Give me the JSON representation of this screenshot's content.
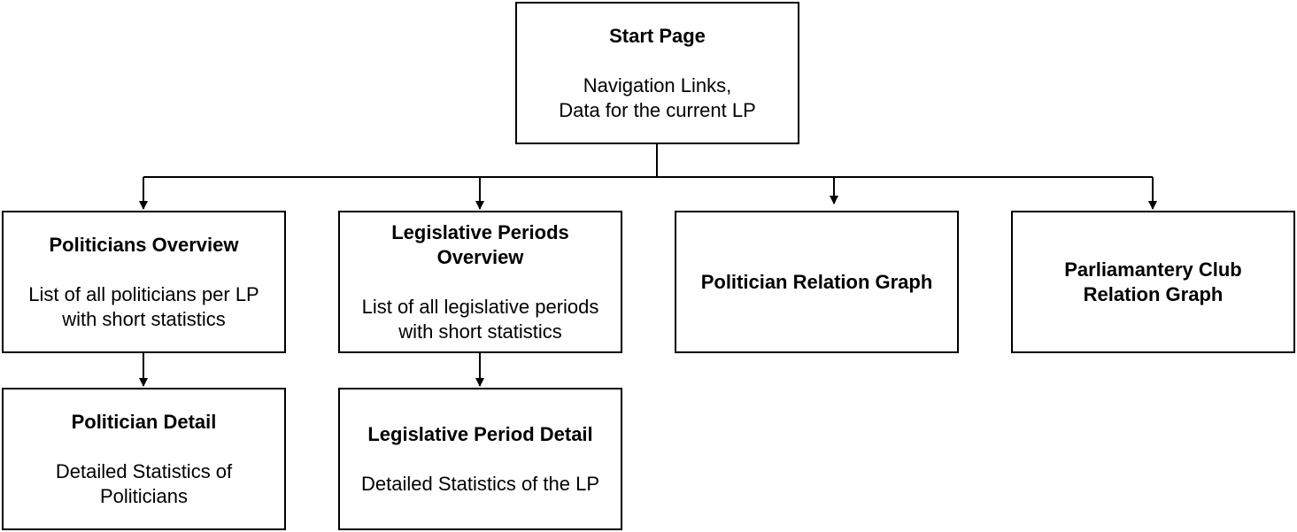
{
  "nodes": {
    "start": {
      "title": "Start Page",
      "description": "Navigation Links,\nData for the current LP"
    },
    "politicians_overview": {
      "title": "Politicians Overview",
      "description": "List of all politicians per LP\nwith short statistics"
    },
    "lp_overview": {
      "title": "Legislative Periods\nOverview",
      "description": "List of all legislative periods\nwith short statistics"
    },
    "relation_graph": {
      "title": "Politician Relation Graph",
      "description": ""
    },
    "club_graph": {
      "title": "Parliamantery Club\nRelation Graph",
      "description": ""
    },
    "politician_detail": {
      "title": "Politician Detail",
      "description": "Detailed Statistics of\nPoliticians"
    },
    "lp_detail": {
      "title": "Legislative Period Detail",
      "description": "Detailed Statistics of the LP"
    }
  },
  "edges": [
    {
      "from": "start",
      "to": "politicians_overview"
    },
    {
      "from": "start",
      "to": "lp_overview"
    },
    {
      "from": "start",
      "to": "relation_graph"
    },
    {
      "from": "start",
      "to": "club_graph"
    },
    {
      "from": "politicians_overview",
      "to": "politician_detail"
    },
    {
      "from": "lp_overview",
      "to": "lp_detail"
    }
  ],
  "colors": {
    "stroke": "#000000",
    "background": "#ffffff"
  }
}
